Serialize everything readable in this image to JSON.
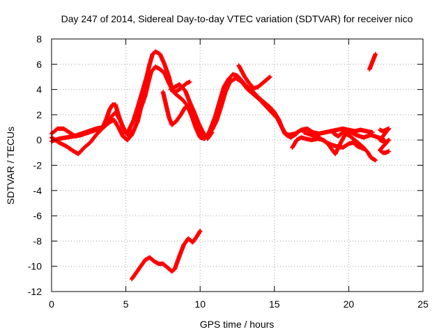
{
  "chart_data": {
    "type": "scatter",
    "title": "Day 247 of 2014, Sidereal Day-to-day VTEC variation (SDTVAR) for receiver nico",
    "xlabel": "GPS time / hours",
    "ylabel": "SDTVAR / TECUs",
    "xlim": [
      0,
      25
    ],
    "ylim": [
      -12,
      8
    ],
    "xticks": [
      0,
      5,
      10,
      15,
      20,
      25
    ],
    "yticks": [
      -12,
      -10,
      -8,
      -6,
      -4,
      -2,
      0,
      2,
      4,
      6,
      8
    ],
    "xtick_labels": [
      "0",
      "5",
      "10",
      "15",
      "20",
      "25"
    ],
    "ytick_labels": [
      "-12",
      "-10",
      "-8",
      "-6",
      "-4",
      "-2",
      "0",
      "2",
      "4",
      "6",
      "8"
    ],
    "grid": true,
    "marker": "plus",
    "color": "#ff0000",
    "series": [
      {
        "name": "track-1",
        "points": [
          [
            0.0,
            0.2
          ],
          [
            0.5,
            -0.2
          ],
          [
            1.0,
            -0.5
          ],
          [
            1.5,
            -0.9
          ],
          [
            1.8,
            -1.1
          ],
          [
            2.2,
            -0.6
          ],
          [
            2.6,
            -0.2
          ],
          [
            3.0,
            0.4
          ],
          [
            3.4,
            0.9
          ],
          [
            3.7,
            1.7
          ],
          [
            3.9,
            2.4
          ],
          [
            4.1,
            2.8
          ],
          [
            4.3,
            2.8
          ],
          [
            4.5,
            2.0
          ],
          [
            4.8,
            1.0
          ],
          [
            5.0,
            0.5
          ],
          [
            5.2,
            0.8
          ],
          [
            5.5,
            1.5
          ],
          [
            5.8,
            2.6
          ],
          [
            6.1,
            3.8
          ],
          [
            6.4,
            5.0
          ],
          [
            6.6,
            6.0
          ],
          [
            6.8,
            6.8
          ],
          [
            7.0,
            7.0
          ],
          [
            7.3,
            6.8
          ],
          [
            7.6,
            6.0
          ],
          [
            7.9,
            5.0
          ],
          [
            8.1,
            4.0
          ],
          [
            8.3,
            3.8
          ],
          [
            8.6,
            4.0
          ],
          [
            8.9,
            4.3
          ],
          [
            9.1,
            4.5
          ],
          [
            9.3,
            4.6
          ]
        ]
      },
      {
        "name": "track-2",
        "points": [
          [
            0.0,
            0.5
          ],
          [
            0.4,
            0.9
          ],
          [
            0.8,
            0.9
          ],
          [
            1.2,
            0.6
          ],
          [
            1.6,
            0.3
          ],
          [
            2.0,
            0.4
          ],
          [
            2.5,
            0.6
          ],
          [
            3.0,
            0.8
          ],
          [
            3.5,
            1.0
          ],
          [
            3.9,
            1.4
          ],
          [
            4.2,
            1.6
          ],
          [
            4.5,
            1.0
          ],
          [
            4.8,
            0.3
          ],
          [
            5.1,
            0.0
          ],
          [
            5.4,
            0.4
          ],
          [
            5.8,
            1.5
          ],
          [
            6.0,
            2.5
          ],
          [
            6.3,
            3.5
          ],
          [
            6.5,
            4.5
          ],
          [
            6.7,
            5.4
          ],
          [
            7.0,
            5.8
          ],
          [
            7.3,
            5.6
          ],
          [
            7.6,
            5.3
          ],
          [
            7.9,
            4.5
          ],
          [
            8.2,
            3.8
          ],
          [
            8.5,
            3.5
          ],
          [
            8.8,
            3.2
          ],
          [
            9.1,
            2.8
          ],
          [
            9.4,
            2.0
          ],
          [
            9.7,
            1.0
          ],
          [
            10.0,
            0.2
          ],
          [
            10.3,
            0.1
          ],
          [
            10.6,
            0.6
          ],
          [
            11.0,
            1.8
          ],
          [
            11.3,
            3.0
          ],
          [
            11.6,
            4.2
          ],
          [
            11.9,
            4.8
          ],
          [
            12.2,
            5.2
          ],
          [
            12.5,
            5.1
          ],
          [
            12.8,
            4.7
          ],
          [
            13.1,
            4.3
          ],
          [
            13.5,
            3.9
          ],
          [
            13.9,
            3.4
          ],
          [
            14.3,
            3.0
          ],
          [
            14.7,
            2.6
          ],
          [
            15.0,
            2.2
          ],
          [
            15.3,
            1.6
          ],
          [
            15.5,
            1.0
          ],
          [
            15.7,
            0.5
          ],
          [
            16.0,
            0.4
          ],
          [
            16.4,
            0.5
          ],
          [
            16.8,
            0.8
          ],
          [
            17.2,
            0.9
          ],
          [
            17.6,
            0.6
          ],
          [
            18.0,
            0.5
          ],
          [
            18.4,
            0.6
          ],
          [
            18.8,
            0.7
          ],
          [
            19.2,
            0.8
          ],
          [
            19.6,
            0.9
          ],
          [
            20.0,
            0.8
          ],
          [
            20.4,
            0.7
          ],
          [
            20.8,
            0.8
          ],
          [
            21.2,
            0.7
          ],
          [
            21.6,
            0.6
          ]
        ]
      },
      {
        "name": "track-3",
        "points": [
          [
            0.0,
            -0.1
          ],
          [
            0.5,
            0.1
          ],
          [
            1.0,
            0.2
          ],
          [
            1.5,
            0.3
          ],
          [
            2.0,
            0.5
          ],
          [
            2.5,
            0.7
          ],
          [
            3.0,
            0.9
          ],
          [
            3.4,
            1.0
          ],
          [
            3.7,
            1.3
          ],
          [
            4.0,
            1.8
          ],
          [
            4.3,
            2.2
          ],
          [
            4.6,
            1.6
          ],
          [
            4.9,
            0.8
          ],
          [
            5.2,
            0.3
          ],
          [
            5.5,
            0.8
          ]
        ]
      },
      {
        "name": "track-4",
        "points": [
          [
            8.0,
            4.0
          ],
          [
            8.3,
            4.2
          ],
          [
            8.6,
            4.4
          ],
          [
            9.0,
            3.9
          ],
          [
            9.3,
            3.0
          ],
          [
            9.6,
            2.2
          ],
          [
            9.9,
            1.3
          ],
          [
            10.2,
            0.6
          ],
          [
            10.5,
            0.1
          ],
          [
            10.8,
            0.6
          ]
        ]
      },
      {
        "name": "track-5",
        "points": [
          [
            7.5,
            3.8
          ],
          [
            7.7,
            2.8
          ],
          [
            7.9,
            1.8
          ],
          [
            8.1,
            1.2
          ],
          [
            8.4,
            1.5
          ],
          [
            8.7,
            2.0
          ],
          [
            9.0,
            2.6
          ],
          [
            9.3,
            2.7
          ],
          [
            9.6,
            2.0
          ],
          [
            9.9,
            1.0
          ],
          [
            10.2,
            0.4
          ],
          [
            10.5,
            0.3
          ],
          [
            10.8,
            0.8
          ],
          [
            11.1,
            1.5
          ],
          [
            11.4,
            2.6
          ],
          [
            11.7,
            3.8
          ],
          [
            12.0,
            4.6
          ],
          [
            12.4,
            4.9
          ],
          [
            12.8,
            4.6
          ],
          [
            13.2,
            4.0
          ],
          [
            13.6,
            3.6
          ],
          [
            14.0,
            3.2
          ],
          [
            14.4,
            2.7
          ],
          [
            14.8,
            2.2
          ],
          [
            15.2,
            1.7
          ],
          [
            15.5,
            1.0
          ],
          [
            15.8,
            0.4
          ],
          [
            16.1,
            0.2
          ],
          [
            16.5,
            0.5
          ]
        ]
      },
      {
        "name": "track-6",
        "points": [
          [
            12.6,
            5.9
          ],
          [
            13.0,
            5.0
          ],
          [
            13.3,
            4.5
          ],
          [
            13.6,
            4.1
          ],
          [
            13.9,
            4.2
          ],
          [
            14.2,
            4.5
          ],
          [
            14.5,
            4.8
          ],
          [
            14.7,
            5.0
          ]
        ]
      },
      {
        "name": "track-7",
        "points": [
          [
            16.2,
            -0.6
          ],
          [
            16.5,
            0.0
          ],
          [
            16.8,
            0.2
          ],
          [
            17.1,
            0.1
          ],
          [
            17.5,
            0.0
          ],
          [
            17.9,
            0.1
          ],
          [
            18.3,
            0.0
          ],
          [
            18.6,
            -0.3
          ],
          [
            18.9,
            -0.8
          ],
          [
            19.1,
            -1.1
          ],
          [
            19.3,
            -0.6
          ],
          [
            19.6,
            0.1
          ],
          [
            19.8,
            0.5
          ],
          [
            20.1,
            0.3
          ],
          [
            20.4,
            0.0
          ],
          [
            20.7,
            -0.3
          ],
          [
            21.0,
            -0.6
          ],
          [
            21.3,
            -1.0
          ],
          [
            21.5,
            -1.4
          ],
          [
            21.8,
            -1.6
          ]
        ]
      },
      {
        "name": "track-8",
        "points": [
          [
            17.0,
            0.6
          ],
          [
            17.5,
            0.4
          ],
          [
            18.0,
            0.2
          ],
          [
            18.5,
            -0.2
          ],
          [
            18.9,
            -0.4
          ],
          [
            19.2,
            -0.5
          ],
          [
            19.6,
            -0.6
          ],
          [
            20.0,
            -0.3
          ],
          [
            20.3,
            -0.2
          ],
          [
            20.6,
            -0.5
          ],
          [
            21.0,
            -0.7
          ]
        ]
      },
      {
        "name": "track-9",
        "points": [
          [
            19.0,
            0.5
          ],
          [
            19.3,
            0.3
          ],
          [
            19.6,
            0.6
          ],
          [
            20.0,
            0.7
          ],
          [
            20.5,
            0.4
          ],
          [
            21.0,
            0.2
          ],
          [
            21.5,
            0.4
          ],
          [
            22.0,
            0.2
          ],
          [
            22.4,
            0.0
          ]
        ]
      },
      {
        "name": "track-10",
        "points": [
          [
            22.1,
            0.8
          ],
          [
            22.3,
            0.7
          ],
          [
            22.5,
            0.8
          ],
          [
            22.7,
            0.9
          ],
          [
            22.1,
            0.0
          ],
          [
            22.3,
            -0.1
          ],
          [
            22.5,
            -0.2
          ],
          [
            22.7,
            0.0
          ],
          [
            22.1,
            -0.8
          ],
          [
            22.3,
            -1.0
          ],
          [
            22.5,
            -1.0
          ],
          [
            22.7,
            -0.9
          ]
        ]
      },
      {
        "name": "track-11",
        "points": [
          [
            21.4,
            5.6
          ],
          [
            21.5,
            5.9
          ],
          [
            21.6,
            6.2
          ],
          [
            21.7,
            6.5
          ],
          [
            21.8,
            6.8
          ]
        ]
      },
      {
        "name": "track-12",
        "points": [
          [
            5.4,
            -11.0
          ],
          [
            5.7,
            -10.5
          ],
          [
            6.0,
            -10.0
          ],
          [
            6.3,
            -9.5
          ],
          [
            6.6,
            -9.3
          ],
          [
            6.9,
            -9.6
          ],
          [
            7.2,
            -9.8
          ],
          [
            7.5,
            -9.8
          ],
          [
            7.8,
            -10.1
          ],
          [
            8.1,
            -10.4
          ],
          [
            8.3,
            -10.2
          ],
          [
            8.6,
            -9.2
          ],
          [
            8.9,
            -8.3
          ],
          [
            9.2,
            -7.8
          ],
          [
            9.5,
            -8.1
          ],
          [
            9.8,
            -7.6
          ],
          [
            10.0,
            -7.2
          ]
        ]
      }
    ]
  }
}
